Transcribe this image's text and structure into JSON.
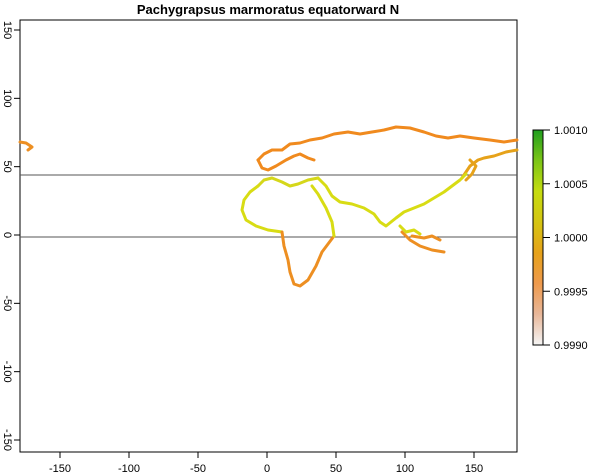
{
  "chart_data": {
    "type": "heatmap",
    "title": "Pachygrapsus marmoratus equatorward N",
    "xlabel": "",
    "ylabel": "",
    "x_ticks": [
      -150,
      -100,
      -50,
      0,
      50,
      100,
      150
    ],
    "y_ticks": [
      -150,
      -100,
      -50,
      0,
      50,
      100,
      150
    ],
    "xlim": [
      -180,
      180
    ],
    "ylim": [
      -150,
      150
    ],
    "reference_lines_lat": [
      0,
      45
    ],
    "legend": {
      "position": "right",
      "ticks": [
        "1.0010",
        "1.0005",
        "1.0000",
        "0.9995",
        "0.9990"
      ],
      "range": [
        0.999,
        1.001
      ],
      "colors": [
        "#f5f5f5",
        "#e8b79a",
        "#ee9a4d",
        "#e6a21a",
        "#d5c512",
        "#c5dc10",
        "#7cc517",
        "#1f9e1f"
      ]
    },
    "coastline_colors": {
      "north": "#f08a1e",
      "mid": "#d8dc14",
      "south": "#ed8f22"
    }
  }
}
